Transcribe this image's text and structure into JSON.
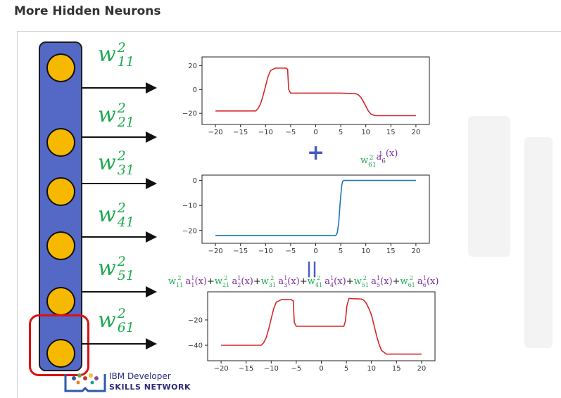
{
  "title": "More Hidden Neurons",
  "neurons": {
    "count": 6,
    "highlighted_index": 5
  },
  "weights": [
    {
      "base": "w",
      "sup": "2",
      "sub": "11"
    },
    {
      "base": "w",
      "sup": "2",
      "sub": "21"
    },
    {
      "base": "w",
      "sup": "2",
      "sub": "31"
    },
    {
      "base": "w",
      "sup": "2",
      "sub": "41"
    },
    {
      "base": "w",
      "sup": "2",
      "sub": "51"
    },
    {
      "base": "w",
      "sup": "2",
      "sub": "61"
    }
  ],
  "term_label": [
    {
      "text": "w",
      "color": "green"
    },
    {
      "text": "61",
      "sub": true,
      "color": "green"
    },
    {
      "text": "2",
      "sup": true,
      "color": "green"
    },
    {
      "text": " a",
      "color": "purple"
    },
    {
      "text": "6",
      "sub": true,
      "color": "purple"
    },
    {
      "text": "1",
      "sup": true,
      "color": "purple"
    },
    {
      "text": " (x)",
      "color": "purple"
    }
  ],
  "plus_symbol": "+",
  "equals_symbol": "||",
  "sum_formula": [
    {
      "w": "11",
      "a": "1",
      "x": "(x)",
      "op": "+"
    },
    {
      "w": "21",
      "a": "2",
      "x": "(x)",
      "op": "+"
    },
    {
      "w": "31",
      "a": "3",
      "x": "(x)",
      "op": "+"
    },
    {
      "w": "41",
      "a": "4",
      "x": "(x)",
      "op": "+"
    },
    {
      "w": "51",
      "a": "5",
      "x": "(x)",
      "op": "+"
    },
    {
      "w": "61",
      "a": "6",
      "x": "(x)",
      "op": ""
    }
  ],
  "colors": {
    "neuron_fill": "#f7b900",
    "column_fill": "#5468c6",
    "highlight": "#dd1111",
    "weight_green": "#1faa52",
    "activation_purple": "#7a2e9a",
    "curve_red": "#d62728",
    "curve_blue": "#1f77b4"
  },
  "chart_data": [
    {
      "type": "line",
      "x_ticks": [
        "−20",
        "−15",
        "−10",
        "−5",
        "0",
        "5",
        "10",
        "15",
        "20"
      ],
      "y_ticks": [
        "20",
        "0",
        "−20"
      ],
      "ylim": [
        -27,
        25
      ],
      "xlim": [
        -21,
        21
      ],
      "color": "#d62728",
      "x": [
        -20,
        -12,
        -11.5,
        -11,
        -10.5,
        -10,
        -9.5,
        -9,
        -8,
        -6,
        -5.6,
        -5.4,
        -5,
        -3,
        0,
        5,
        8,
        8.5,
        9,
        9.5,
        10,
        10.5,
        11,
        11.5,
        12,
        13,
        20
      ],
      "y": [
        -18,
        -18,
        -16,
        -12,
        -5,
        3,
        11,
        16,
        18,
        18,
        17,
        0,
        -3,
        -3,
        -3,
        -3,
        -3.5,
        -4.5,
        -6.5,
        -10,
        -14,
        -18,
        -20.5,
        -21.5,
        -22,
        -22,
        -22
      ]
    },
    {
      "type": "line",
      "x_ticks": [
        "−20",
        "−15",
        "−10",
        "−5",
        "0",
        "5",
        "10",
        "15",
        "20"
      ],
      "y_ticks": [
        "0",
        "−10",
        "−20"
      ],
      "ylim": [
        -24,
        1
      ],
      "xlim": [
        -21,
        21
      ],
      "color": "#1f77b4",
      "x": [
        -20,
        4,
        4.3,
        4.6,
        4.8,
        5,
        5.2,
        5.4,
        5.7,
        20
      ],
      "y": [
        -22,
        -22,
        -21,
        -17,
        -11,
        -6,
        -2,
        -0.3,
        0,
        0
      ]
    },
    {
      "type": "line",
      "x_ticks": [
        "−20",
        "−15",
        "−10",
        "−5",
        "0",
        "5",
        "10",
        "15",
        "20"
      ],
      "y_ticks": [
        "−20",
        "−40"
      ],
      "ylim": [
        -50,
        0
      ],
      "xlim": [
        -21,
        21
      ],
      "color": "#d62728",
      "x": [
        -20,
        -12,
        -11.5,
        -11,
        -10.5,
        -10,
        -9.5,
        -9,
        -8,
        -6,
        -5.6,
        -5.4,
        -5,
        -2,
        0,
        4.5,
        4.8,
        5.1,
        5.5,
        8,
        8.5,
        9,
        9.5,
        10,
        10.5,
        11,
        11.5,
        12,
        13,
        20
      ],
      "y": [
        -40,
        -40,
        -38,
        -34,
        -27,
        -19,
        -11,
        -6,
        -4,
        -4,
        -5,
        -22,
        -25,
        -25,
        -25,
        -25,
        -21,
        -9,
        -3,
        -3.5,
        -4.5,
        -7,
        -11,
        -16,
        -24,
        -32,
        -39,
        -44,
        -47,
        -47
      ]
    }
  ],
  "logo": {
    "line1": "IBM Developer",
    "line2": "SKILLS NETWORK"
  }
}
